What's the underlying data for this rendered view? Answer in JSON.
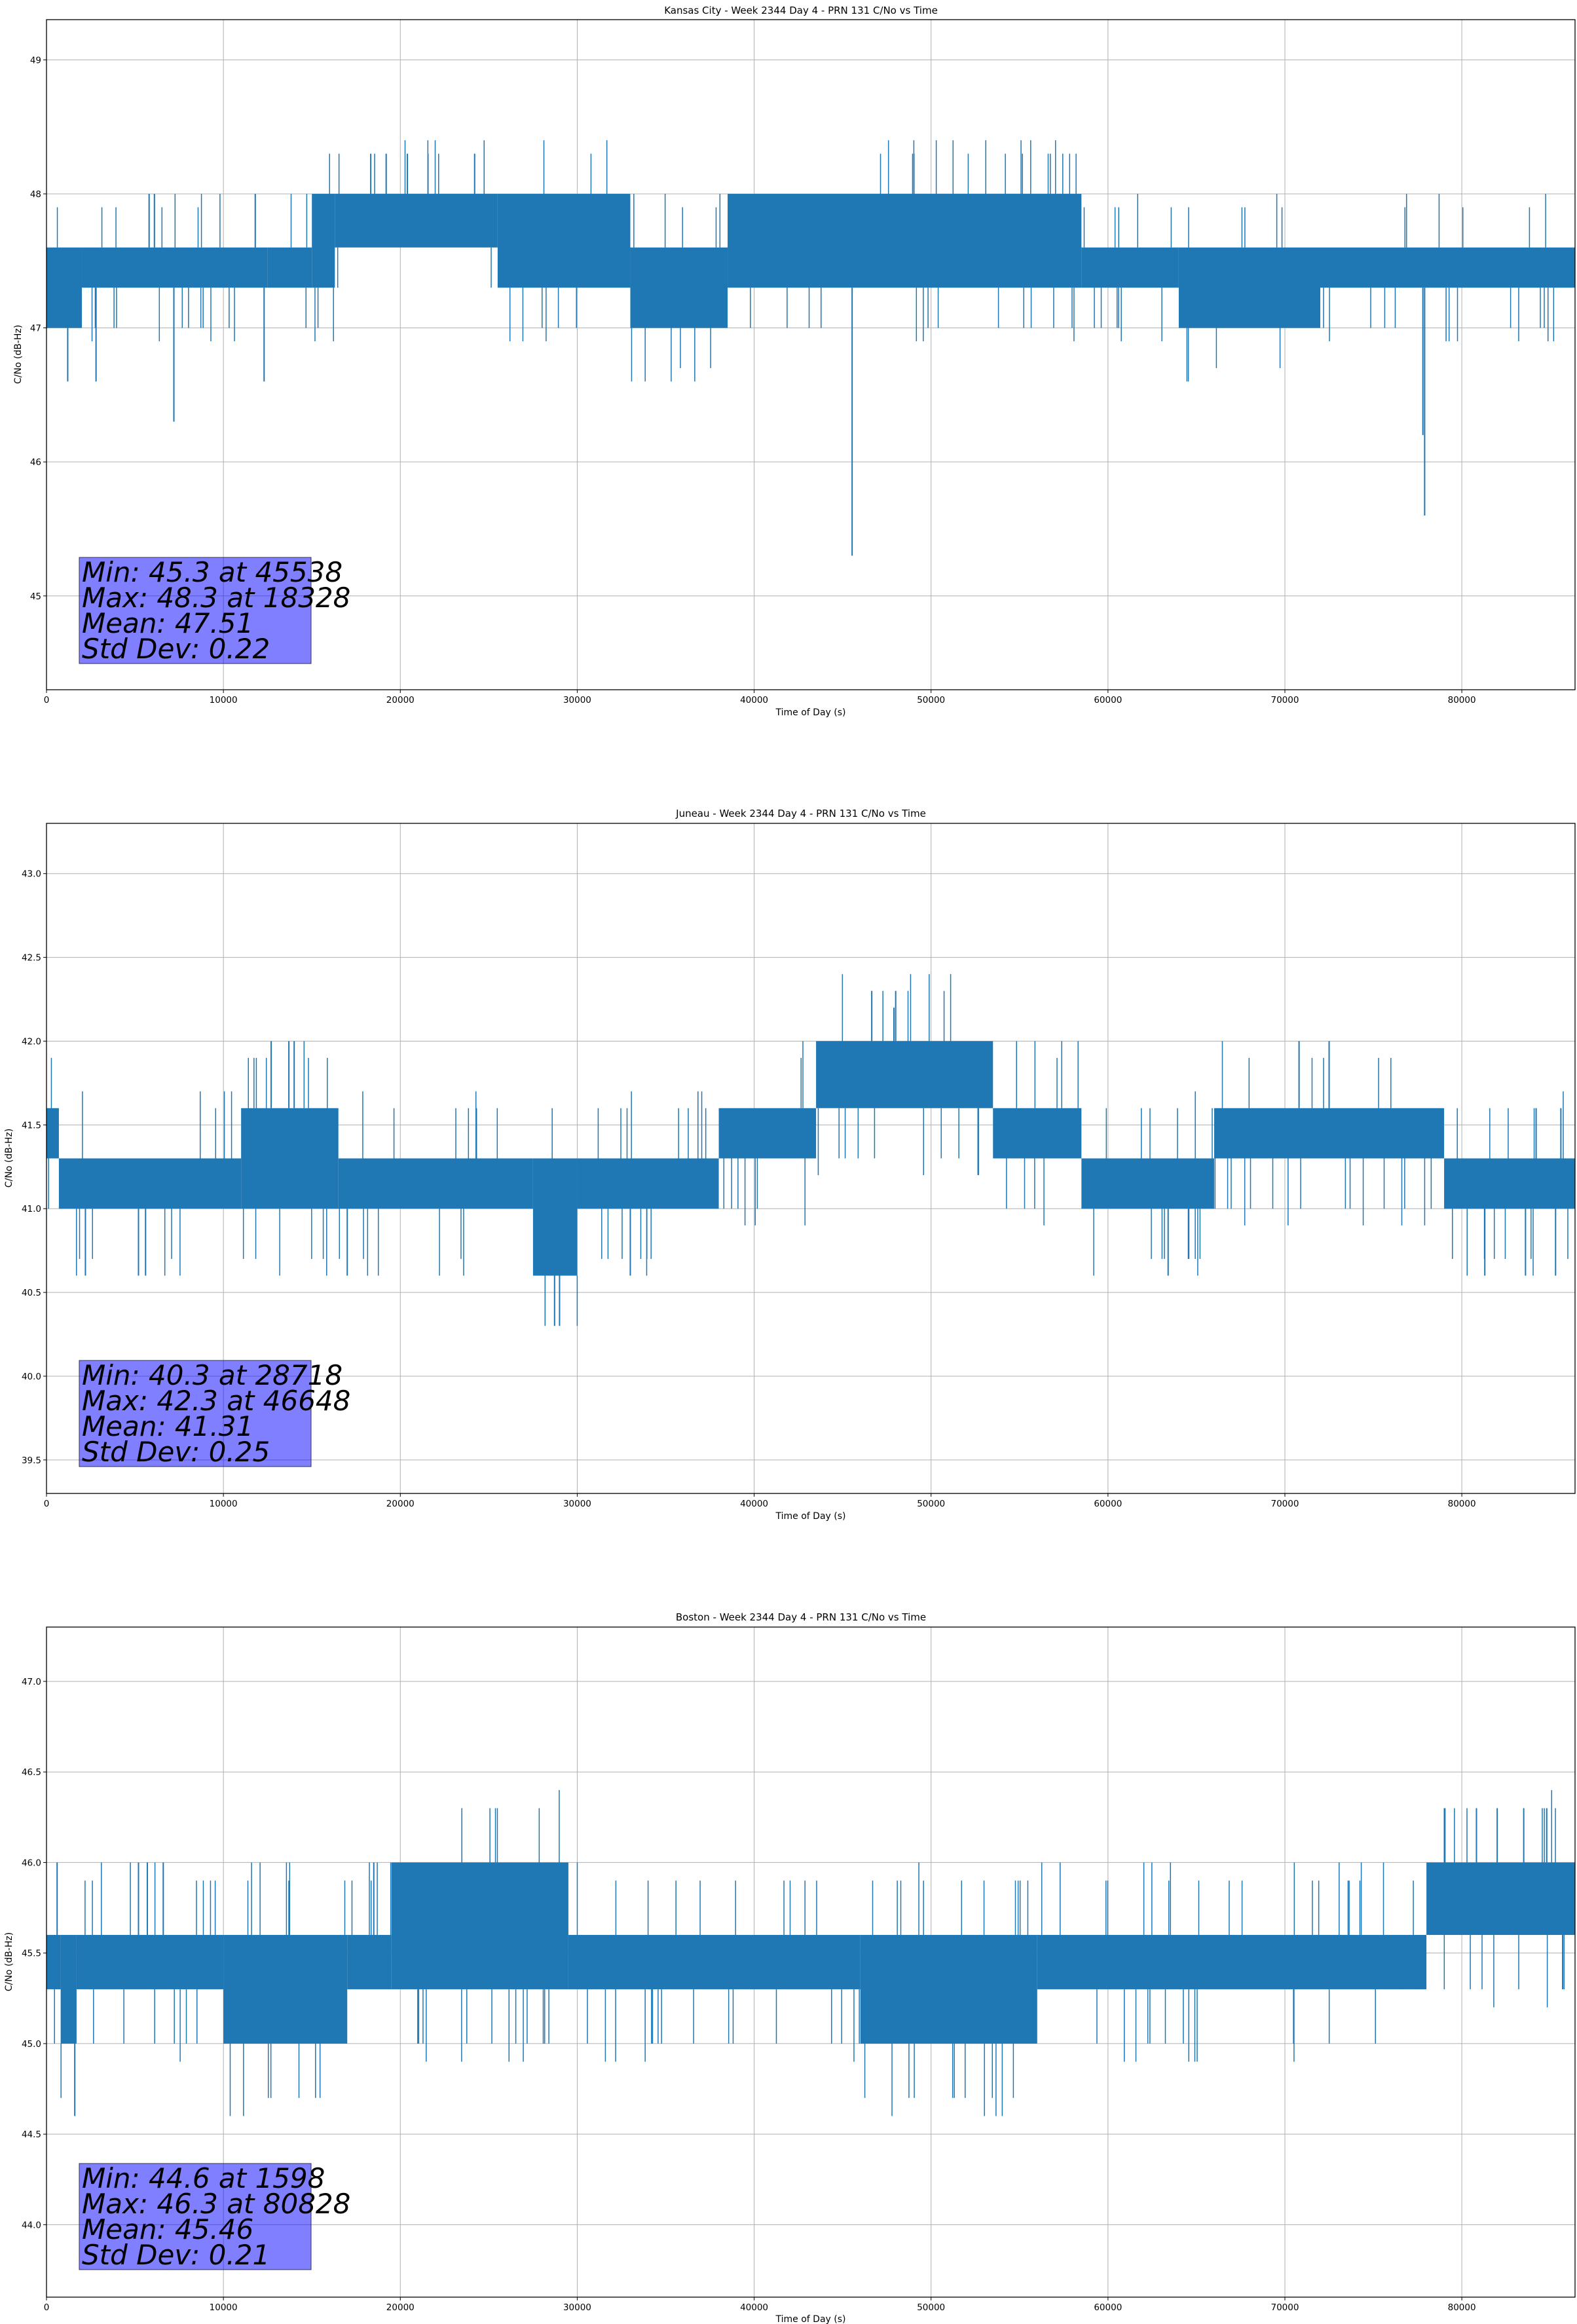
{
  "colors": {
    "series": "#1f77b4",
    "statbox": "#8080ff",
    "grid": "#b0b0b0"
  },
  "chart_data": [
    {
      "type": "line",
      "title": "Kansas City - Week 2344 Day 4 - PRN 131 C/No vs Time",
      "xlabel": "Time of Day (s)",
      "ylabel": "C/No (dB-Hz)",
      "xlim": [
        0,
        86400
      ],
      "ylim": [
        44.3,
        49.3
      ],
      "grid": true,
      "xticks": [
        "0",
        "10000",
        "20000",
        "30000",
        "40000",
        "50000",
        "60000",
        "70000",
        "80000"
      ],
      "yticks": [
        "45",
        "46",
        "47",
        "48",
        "49"
      ],
      "series": [
        {
          "bands": [
            {
              "x": [
                0,
                2000
              ],
              "y": [
                47.0,
                47.6
              ]
            },
            {
              "x": [
                2000,
                12500
              ],
              "y": [
                47.3,
                47.6
              ]
            },
            {
              "x": [
                12500,
                15000
              ],
              "y": [
                47.3,
                47.6
              ]
            },
            {
              "x": [
                15000,
                16300
              ],
              "y": [
                47.3,
                48.0
              ]
            },
            {
              "x": [
                16300,
                25500
              ],
              "y": [
                47.6,
                48.0
              ]
            },
            {
              "x": [
                25500,
                33000
              ],
              "y": [
                47.3,
                48.0
              ]
            },
            {
              "x": [
                33000,
                38500
              ],
              "y": [
                47.0,
                47.6
              ]
            },
            {
              "x": [
                38500,
                58500
              ],
              "y": [
                47.3,
                48.0
              ]
            },
            {
              "x": [
                58500,
                64000
              ],
              "y": [
                47.3,
                47.6
              ]
            },
            {
              "x": [
                64000,
                72000
              ],
              "y": [
                47.0,
                47.6
              ]
            },
            {
              "x": [
                72000,
                86400
              ],
              "y": [
                47.3,
                47.6
              ]
            }
          ],
          "spikes": [
            {
              "x": 1200,
              "y": 46.6
            },
            {
              "x": 2800,
              "y": 46.6
            },
            {
              "x": 7200,
              "y": 46.3
            },
            {
              "x": 12300,
              "y": 46.6
            },
            {
              "x": 16200,
              "y": 48.0
            },
            {
              "x": 18328,
              "y": 48.3
            },
            {
              "x": 19200,
              "y": 48.3
            },
            {
              "x": 20400,
              "y": 48.3
            },
            {
              "x": 24200,
              "y": 48.3
            },
            {
              "x": 45538,
              "y": 45.3
            },
            {
              "x": 77900,
              "y": 45.6
            },
            {
              "x": 77800,
              "y": 46.2
            },
            {
              "x": 11800,
              "y": 48.0
            },
            {
              "x": 6100,
              "y": 48.0
            },
            {
              "x": 5800,
              "y": 48.0
            }
          ]
        }
      ],
      "stats": [
        "Min: 45.3 at 45538",
        "Max: 48.3 at 18328",
        "Mean: 47.51",
        "Std Dev: 0.22"
      ]
    },
    {
      "type": "line",
      "title": "Juneau - Week 2344 Day 4 - PRN 131 C/No vs Time",
      "xlabel": "Time of Day (s)",
      "ylabel": "C/No (dB-Hz)",
      "xlim": [
        0,
        86400
      ],
      "ylim": [
        39.3,
        43.3
      ],
      "grid": true,
      "xticks": [
        "0",
        "10000",
        "20000",
        "30000",
        "40000",
        "50000",
        "60000",
        "70000",
        "80000"
      ],
      "yticks": [
        "39.5",
        "40.0",
        "40.5",
        "41.0",
        "41.5",
        "42.0",
        "42.5",
        "43.0"
      ],
      "series": [
        {
          "bands": [
            {
              "x": [
                0,
                700
              ],
              "y": [
                41.3,
                41.6
              ]
            },
            {
              "x": [
                700,
                11000
              ],
              "y": [
                41.0,
                41.3
              ]
            },
            {
              "x": [
                11000,
                16500
              ],
              "y": [
                41.0,
                41.6
              ]
            },
            {
              "x": [
                16500,
                27500
              ],
              "y": [
                41.0,
                41.3
              ]
            },
            {
              "x": [
                27500,
                30000
              ],
              "y": [
                40.6,
                41.3
              ]
            },
            {
              "x": [
                30000,
                38000
              ],
              "y": [
                41.0,
                41.3
              ]
            },
            {
              "x": [
                38000,
                43500
              ],
              "y": [
                41.3,
                41.6
              ]
            },
            {
              "x": [
                43500,
                53500
              ],
              "y": [
                41.6,
                42.0
              ]
            },
            {
              "x": [
                53500,
                58500
              ],
              "y": [
                41.3,
                41.6
              ]
            },
            {
              "x": [
                58500,
                66000
              ],
              "y": [
                41.0,
                41.3
              ]
            },
            {
              "x": [
                66000,
                79000
              ],
              "y": [
                41.3,
                41.6
              ]
            },
            {
              "x": [
                79000,
                86400
              ],
              "y": [
                41.0,
                41.3
              ]
            }
          ],
          "spikes": [
            {
              "x": 2200,
              "y": 40.6
            },
            {
              "x": 5200,
              "y": 40.6
            },
            {
              "x": 5600,
              "y": 40.6
            },
            {
              "x": 12700,
              "y": 42.0
            },
            {
              "x": 13700,
              "y": 42.0
            },
            {
              "x": 14000,
              "y": 42.0
            },
            {
              "x": 28718,
              "y": 40.3
            },
            {
              "x": 29000,
              "y": 40.3
            },
            {
              "x": 46648,
              "y": 42.3
            },
            {
              "x": 48000,
              "y": 42.3
            },
            {
              "x": 47900,
              "y": 42.2
            },
            {
              "x": 70800,
              "y": 42.0
            },
            {
              "x": 72500,
              "y": 42.0
            },
            {
              "x": 81300,
              "y": 40.6
            },
            {
              "x": 83600,
              "y": 40.6
            },
            {
              "x": 85300,
              "y": 40.6
            },
            {
              "x": 84200,
              "y": 41.6
            },
            {
              "x": 85600,
              "y": 41.6
            },
            {
              "x": 17000,
              "y": 40.6
            },
            {
              "x": 33000,
              "y": 40.6
            },
            {
              "x": 63400,
              "y": 40.6
            }
          ]
        }
      ],
      "stats": [
        "Min: 40.3 at 28718",
        "Max: 42.3 at 46648",
        "Mean: 41.31",
        "Std Dev: 0.25"
      ]
    },
    {
      "type": "line",
      "title": "Boston - Week 2344 Day 4 - PRN 131 C/No vs Time",
      "xlabel": "Time of Day (s)",
      "ylabel": "C/No (dB-Hz)",
      "xlim": [
        0,
        86400
      ],
      "ylim": [
        43.6,
        47.3
      ],
      "grid": true,
      "xticks": [
        "0",
        "10000",
        "20000",
        "30000",
        "40000",
        "50000",
        "60000",
        "70000",
        "80000"
      ],
      "yticks": [
        "44.0",
        "44.5",
        "45.0",
        "45.5",
        "46.0",
        "46.5",
        "47.0"
      ],
      "series": [
        {
          "bands": [
            {
              "x": [
                0,
                800
              ],
              "y": [
                45.3,
                45.6
              ]
            },
            {
              "x": [
                800,
                1700
              ],
              "y": [
                45.0,
                45.6
              ]
            },
            {
              "x": [
                1700,
                10000
              ],
              "y": [
                45.3,
                45.6
              ]
            },
            {
              "x": [
                10000,
                17000
              ],
              "y": [
                45.0,
                45.6
              ]
            },
            {
              "x": [
                17000,
                19500
              ],
              "y": [
                45.3,
                45.6
              ]
            },
            {
              "x": [
                19500,
                29500
              ],
              "y": [
                45.3,
                46.0
              ]
            },
            {
              "x": [
                29500,
                46000
              ],
              "y": [
                45.3,
                45.6
              ]
            },
            {
              "x": [
                46000,
                56000
              ],
              "y": [
                45.0,
                45.6
              ]
            },
            {
              "x": [
                56000,
                78000
              ],
              "y": [
                45.3,
                45.6
              ]
            },
            {
              "x": [
                78000,
                86400
              ],
              "y": [
                45.6,
                46.0
              ]
            }
          ],
          "spikes": [
            {
              "x": 1598,
              "y": 44.6
            },
            {
              "x": 600,
              "y": 46.0
            },
            {
              "x": 500,
              "y": 45.3
            },
            {
              "x": 5200,
              "y": 46.0
            },
            {
              "x": 5700,
              "y": 46.0
            },
            {
              "x": 6600,
              "y": 46.0
            },
            {
              "x": 18500,
              "y": 46.0
            },
            {
              "x": 80828,
              "y": 46.3
            },
            {
              "x": 82000,
              "y": 46.3
            },
            {
              "x": 83500,
              "y": 46.3
            },
            {
              "x": 84800,
              "y": 46.3
            },
            {
              "x": 85700,
              "y": 45.3
            },
            {
              "x": 76500,
              "y": 45.3
            },
            {
              "x": 77500,
              "y": 45.3
            }
          ]
        }
      ],
      "stats": [
        "Min: 44.6 at 1598",
        "Max: 46.3 at 80828",
        "Mean: 45.46",
        "Std Dev: 0.21"
      ]
    }
  ]
}
